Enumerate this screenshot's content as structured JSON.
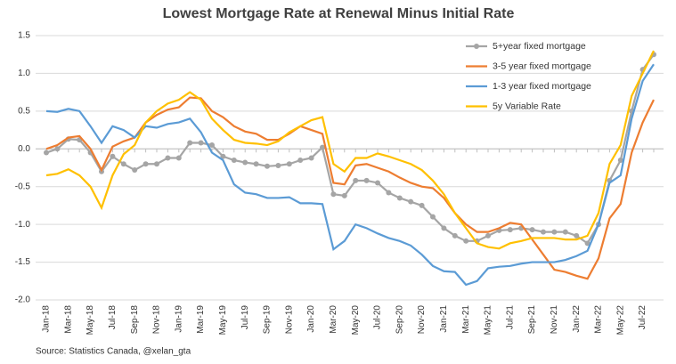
{
  "chart_data": {
    "type": "line",
    "title": "Lowest Mortgage Rate at Renewal Minus Initial Rate",
    "source": "Source: Statistics Canada, @xelan_gta",
    "categories": [
      "Jan-18",
      null,
      "Mar-18",
      null,
      "May-18",
      null,
      "Jul-18",
      null,
      "Sep-18",
      null,
      "Nov-18",
      null,
      "Jan-19",
      null,
      "Mar-19",
      null,
      "May-19",
      null,
      "Jul-19",
      null,
      "Sep-19",
      null,
      "Nov-19",
      null,
      "Jan-20",
      null,
      "Mar-20",
      null,
      "May-20",
      null,
      "Jul-20",
      null,
      "Sep-20",
      null,
      "Nov-20",
      null,
      "Jan-21",
      null,
      "Mar-21",
      null,
      "May-21",
      null,
      "Jul-21",
      null,
      "Sep-21",
      null,
      "Nov-21",
      null,
      "Jan-22",
      null,
      "Mar-22",
      null,
      "May-22",
      null,
      "Jul-22",
      null
    ],
    "series": [
      {
        "name": "5+year fixed mortgage",
        "color": "#a5a5a5",
        "marker": "circle",
        "values": [
          -0.05,
          0.0,
          0.13,
          0.12,
          -0.05,
          -0.3,
          -0.1,
          -0.2,
          -0.28,
          -0.2,
          -0.2,
          -0.12,
          -0.12,
          0.08,
          0.08,
          0.05,
          -0.1,
          -0.15,
          -0.18,
          -0.2,
          -0.23,
          -0.22,
          -0.2,
          -0.15,
          -0.12,
          0.02,
          -0.6,
          -0.62,
          -0.42,
          -0.42,
          -0.45,
          -0.58,
          -0.65,
          -0.7,
          -0.75,
          -0.9,
          -1.05,
          -1.15,
          -1.22,
          -1.22,
          -1.15,
          -1.08,
          -1.07,
          -1.05,
          -1.07,
          -1.1,
          -1.1,
          -1.1,
          -1.15,
          -1.25,
          -1.0,
          -0.42,
          -0.15,
          0.5,
          1.05,
          1.25
        ]
      },
      {
        "name": "3-5 year fixed mortgage",
        "color": "#ed7d31",
        "values": [
          0.0,
          0.05,
          0.15,
          0.17,
          0.0,
          -0.28,
          0.03,
          0.1,
          0.15,
          0.35,
          0.45,
          0.52,
          0.55,
          0.68,
          0.67,
          0.5,
          0.42,
          0.3,
          0.23,
          0.2,
          0.12,
          0.12,
          0.2,
          0.3,
          0.25,
          0.2,
          -0.45,
          -0.47,
          -0.22,
          -0.2,
          -0.25,
          -0.3,
          -0.38,
          -0.45,
          -0.5,
          -0.52,
          -0.65,
          -0.85,
          -1.0,
          -1.1,
          -1.1,
          -1.05,
          -0.98,
          -1.0,
          -1.2,
          -1.4,
          -1.6,
          -1.63,
          -1.68,
          -1.72,
          -1.45,
          -0.92,
          -0.73,
          -0.05,
          0.35,
          0.65
        ]
      },
      {
        "name": "1-3 year fixed mortgage",
        "color": "#5b9bd5",
        "values": [
          0.5,
          0.49,
          0.53,
          0.5,
          0.3,
          0.08,
          0.3,
          0.25,
          0.15,
          0.3,
          0.28,
          0.33,
          0.35,
          0.4,
          0.22,
          -0.05,
          -0.15,
          -0.47,
          -0.58,
          -0.6,
          -0.65,
          -0.65,
          -0.64,
          -0.72,
          -0.72,
          -0.73,
          -1.33,
          -1.22,
          -1.0,
          -1.05,
          -1.12,
          -1.18,
          -1.22,
          -1.28,
          -1.4,
          -1.55,
          -1.62,
          -1.63,
          -1.8,
          -1.75,
          -1.58,
          -1.56,
          -1.55,
          -1.52,
          -1.5,
          -1.5,
          -1.5,
          -1.47,
          -1.42,
          -1.35,
          -1.0,
          -0.45,
          -0.35,
          0.4,
          0.9,
          1.12
        ]
      },
      {
        "name": "5y Variable Rate",
        "color": "#ffc000",
        "values": [
          -0.35,
          -0.33,
          -0.27,
          -0.35,
          -0.5,
          -0.78,
          -0.35,
          -0.07,
          0.05,
          0.35,
          0.5,
          0.6,
          0.65,
          0.75,
          0.65,
          0.4,
          0.25,
          0.12,
          0.08,
          0.07,
          0.05,
          0.1,
          0.22,
          0.3,
          0.38,
          0.42,
          -0.2,
          -0.3,
          -0.12,
          -0.12,
          -0.06,
          -0.1,
          -0.15,
          -0.2,
          -0.28,
          -0.42,
          -0.6,
          -0.85,
          -1.05,
          -1.25,
          -1.3,
          -1.32,
          -1.25,
          -1.22,
          -1.18,
          -1.18,
          -1.18,
          -1.2,
          -1.2,
          -1.15,
          -0.85,
          -0.2,
          0.05,
          0.7,
          1.0,
          1.3
        ]
      }
    ],
    "ylim": [
      -2,
      1.5
    ],
    "yticks": [
      {
        "value": -2,
        "label": "-2.0"
      },
      -1.5,
      {
        "value": -1,
        "label": "-1.0"
      },
      -0.5,
      {
        "value": 0,
        "label": "0.0"
      },
      0.5,
      {
        "value": 1,
        "label": "1.0"
      },
      1.5
    ],
    "grid": true,
    "legend": "upper right"
  }
}
